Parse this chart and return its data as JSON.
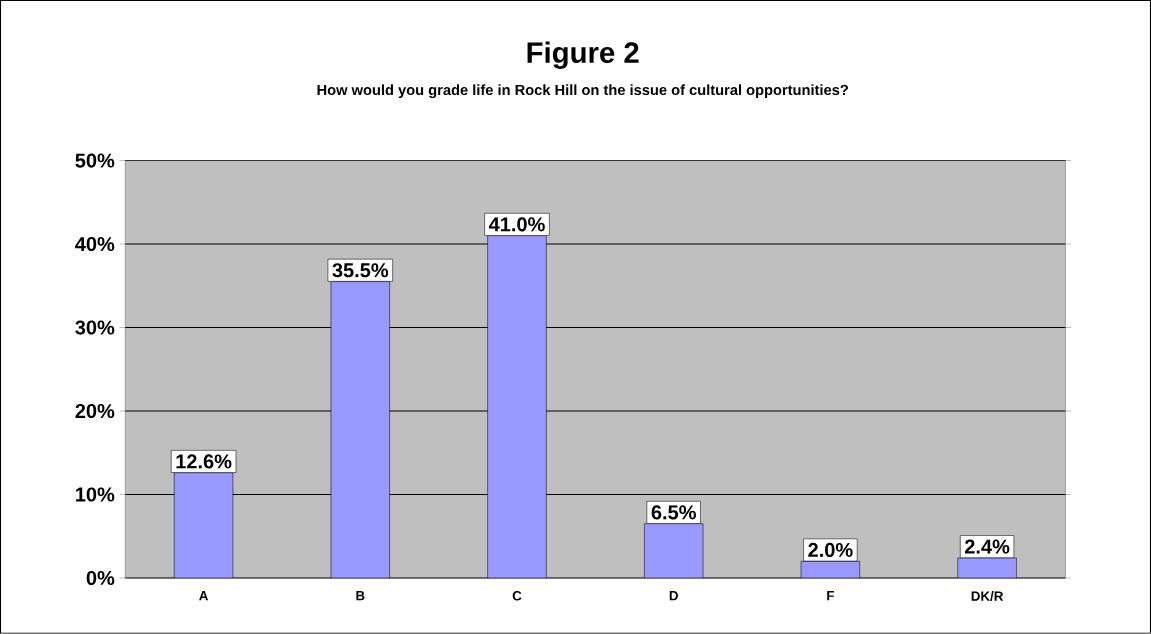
{
  "chart_data": {
    "type": "bar",
    "title": "Figure 2",
    "subtitle": "How would you grade life in Rock Hill on the issue of cultural opportunities?",
    "categories": [
      "A",
      "B",
      "C",
      "D",
      "F",
      "DK/R"
    ],
    "values": [
      12.6,
      35.5,
      41.0,
      6.5,
      2.0,
      2.4
    ],
    "value_labels": [
      "12.6%",
      "35.5%",
      "41.0%",
      "6.5%",
      "2.0%",
      "2.4%"
    ],
    "color": "#9999ff",
    "ylim": [
      0,
      50
    ],
    "yticks": [
      {
        "value": 0,
        "label": "0%"
      },
      {
        "value": 10,
        "label": "10%"
      },
      {
        "value": 20,
        "label": "20%"
      },
      {
        "value": 30,
        "label": "30%"
      },
      {
        "value": 40,
        "label": "40%"
      },
      {
        "value": 50,
        "label": "50%"
      }
    ],
    "grid": "y"
  }
}
